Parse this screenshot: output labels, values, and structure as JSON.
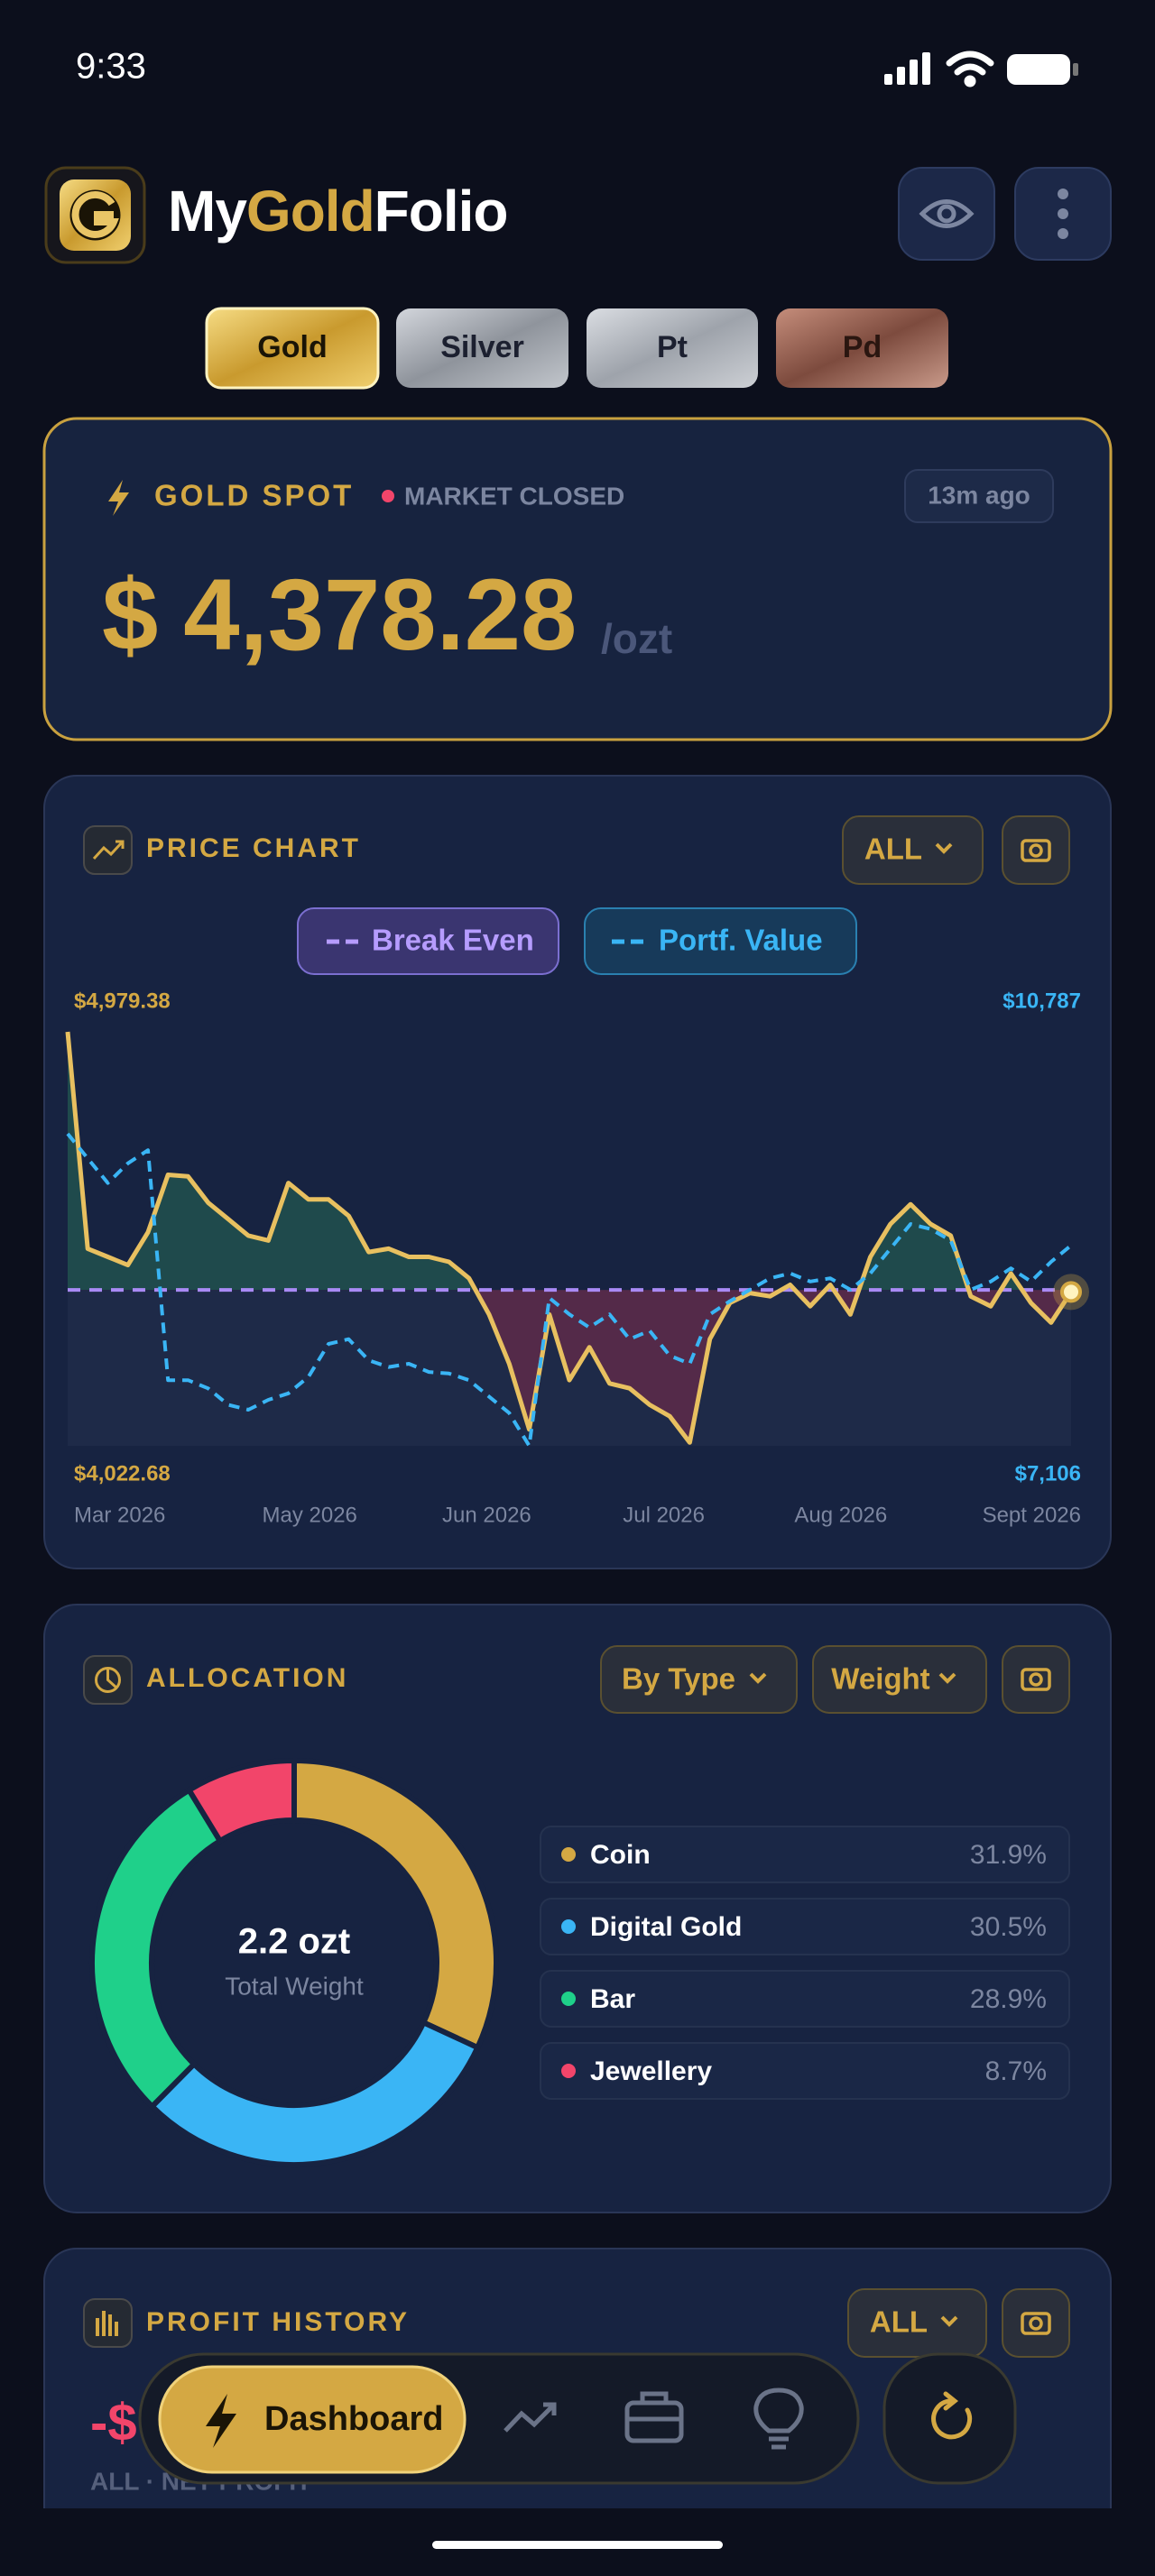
{
  "status_bar": {
    "time": "9:33"
  },
  "header": {
    "brand": {
      "prefix": "My",
      "highlight": "Gold",
      "suffix": "Folio"
    }
  },
  "metal_tabs": [
    "Gold",
    "Silver",
    "Pt",
    "Pd"
  ],
  "spot": {
    "label": "GOLD SPOT",
    "status": "MARKET CLOSED",
    "updated": "13m ago",
    "currency": "$",
    "price": "4,378.28",
    "unit": "/ozt"
  },
  "price_chart": {
    "title": "PRICE CHART",
    "range": "ALL",
    "chart_data": {
      "type": "line",
      "xtick_labels": [
        "Mar 2026",
        "May 2026",
        "Jun 2026",
        "Jul 2026",
        "Aug 2026",
        "Sept 2026"
      ],
      "ylim": [
        4022.68,
        4979.38
      ],
      "yticks": [
        {
          "value": 4022.68,
          "label": "$4,022.68"
        },
        {
          "value": 4979.38,
          "label": "$4,979.38"
        }
      ],
      "y2lim": [
        7106,
        10787
      ],
      "y2ticks": [
        {
          "value": 7106,
          "label": "$7,106"
        },
        {
          "value": 10787,
          "label": "$10,787"
        }
      ],
      "break_even": {
        "name": "Break Even",
        "color": "#a98af5",
        "value": 4383
      },
      "series": [
        {
          "color": "#e8c060",
          "values": [
            4979.4,
            4478.3,
            4459.3,
            4440.3,
            4516.2,
            4649.1,
            4645.3,
            4584.6,
            4546.6,
            4508.6,
            4497.3,
            4630.1,
            4592.2,
            4592.2,
            4554.2,
            4470.7,
            4478.3,
            4459.3,
            4459.3,
            4447.9,
            4409.9,
            4326.4,
            4212.5,
            4060.7,
            4326.4,
            4174.6,
            4250.5,
            4167.0,
            4155.6,
            4117.6,
            4091.0,
            4030.3,
            4269.5,
            4353.0,
            4375.8,
            4368.2,
            4394.8,
            4345.4,
            4394.8,
            4326.4,
            4459.3,
            4535.2,
            4580.8,
            4535.2,
            4508.6,
            4368.2,
            4345.4,
            4421.0,
            4353.0,
            4307.4,
            4378.3
          ]
        },
        {
          "name": "Portf. Value",
          "color": "#3ab5f5",
          "axis": "y2",
          "values": [
            9881,
            9662,
            9443,
            9618,
            9735,
            7690,
            7690,
            7617,
            7471,
            7427,
            7515,
            7573,
            7720,
            8012,
            8055,
            7866,
            7807,
            7836,
            7763,
            7749,
            7690,
            7544,
            7398,
            7106,
            8421,
            8275,
            8158,
            8275,
            8055,
            8129,
            7909,
            7836,
            8275,
            8392,
            8494,
            8596,
            8640,
            8567,
            8596,
            8494,
            8640,
            8859,
            9078,
            9034,
            8932,
            8494,
            8567,
            8684,
            8567,
            8742,
            8888
          ]
        }
      ]
    }
  },
  "allocation": {
    "title": "ALLOCATION",
    "group_by": "By Type",
    "measure": "Weight",
    "chart_data": {
      "type": "donut",
      "categories": [
        "Coin",
        "Digital Gold",
        "Bar",
        "Jewellery"
      ],
      "values": [
        31.9,
        30.5,
        28.9,
        8.7
      ],
      "value_labels": [
        "31.9%",
        "30.5%",
        "28.9%",
        "8.7%"
      ],
      "colors": [
        "#d4a843",
        "#3ab5f5",
        "#1fd08a",
        "#f2456a"
      ],
      "center_value": "2.2 ozt",
      "center_label": "Total Weight"
    }
  },
  "profit_history": {
    "title": "PROFIT HISTORY",
    "range": "ALL",
    "value": "-$",
    "caption": "ALL · NET PROFIT"
  },
  "nav": {
    "active": "Dashboard"
  }
}
